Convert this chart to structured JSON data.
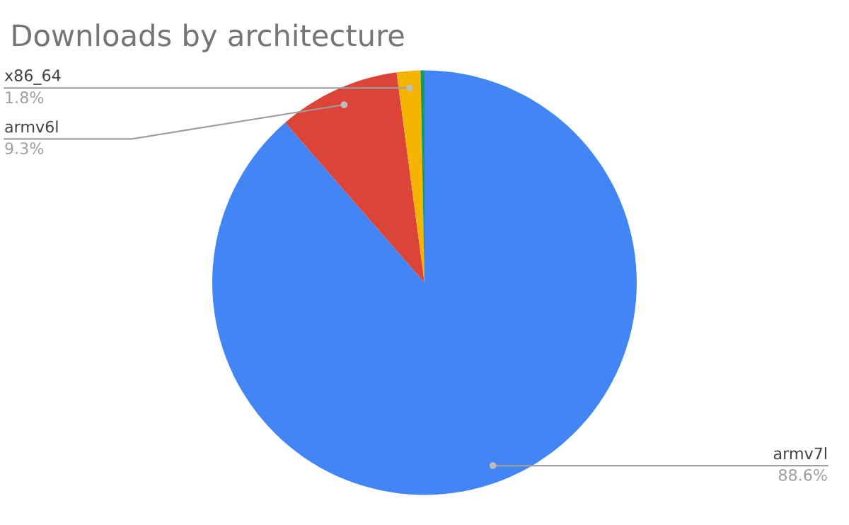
{
  "chart_data": {
    "type": "pie",
    "title": "Downloads by architecture",
    "categories": [
      "armv7l",
      "armv6l",
      "x86_64",
      null
    ],
    "values": [
      88.6,
      9.3,
      1.8,
      0.3
    ],
    "colors": [
      "#4285f4",
      "#db4437",
      "#f4b400",
      "#0f9d58"
    ],
    "value_labels": [
      "88.6%",
      "9.3%",
      "1.8%",
      null
    ],
    "legend": false
  }
}
